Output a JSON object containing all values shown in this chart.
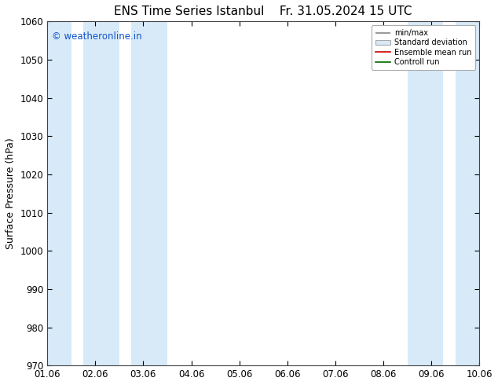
{
  "title_left": "ENS Time Series Istanbul",
  "title_right": "Fr. 31.05.2024 15 UTC",
  "ylabel": "Surface Pressure (hPa)",
  "ylim": [
    970,
    1060
  ],
  "yticks": [
    970,
    980,
    990,
    1000,
    1010,
    1020,
    1030,
    1040,
    1050,
    1060
  ],
  "xlim": [
    0,
    9
  ],
  "xtick_labels": [
    "01.06",
    "02.06",
    "03.06",
    "04.06",
    "05.06",
    "06.06",
    "07.06",
    "08.06",
    "09.06",
    "10.06"
  ],
  "xtick_positions": [
    0,
    1,
    2,
    3,
    4,
    5,
    6,
    7,
    8,
    9
  ],
  "watermark": "© weatheronline.in",
  "watermark_color": "#1155cc",
  "legend_labels": [
    "min/max",
    "Standard deviation",
    "Ensemble mean run",
    "Controll run"
  ],
  "shaded_bands": [
    {
      "x_start": 0.0,
      "x_end": 0.5,
      "color": "#d8eaf8"
    },
    {
      "x_start": 0.75,
      "x_end": 1.5,
      "color": "#d8eaf8"
    },
    {
      "x_start": 1.75,
      "x_end": 2.5,
      "color": "#d8eaf8"
    },
    {
      "x_start": 7.5,
      "x_end": 8.25,
      "color": "#d8eaf8"
    },
    {
      "x_start": 8.5,
      "x_end": 9.0,
      "color": "#d8eaf8"
    }
  ],
  "background_color": "#ffffff",
  "plot_bg_color": "#ffffff",
  "title_fontsize": 11,
  "axis_label_fontsize": 9,
  "tick_fontsize": 8.5
}
